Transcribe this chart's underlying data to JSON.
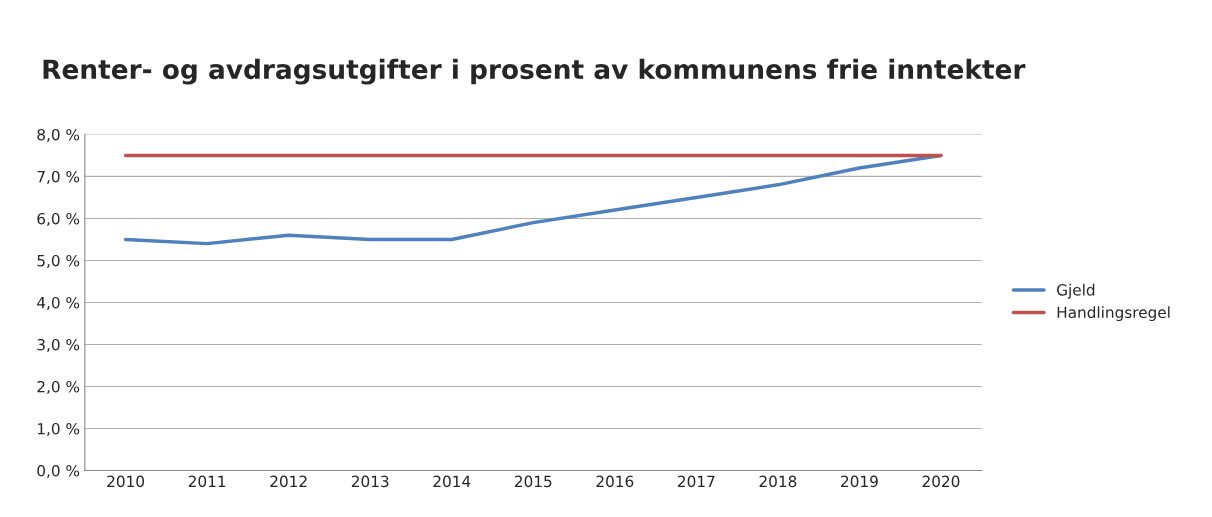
{
  "chart_data": {
    "type": "line",
    "title": "Renter- og avdragsutgifter i prosent av kommunens frie inntekter",
    "categories": [
      "2010",
      "2011",
      "2012",
      "2013",
      "2014",
      "2015",
      "2016",
      "2017",
      "2018",
      "2019",
      "2020"
    ],
    "series": [
      {
        "name": "Gjeld",
        "color": "#4f81bd",
        "values": [
          5.5,
          5.4,
          5.6,
          5.5,
          5.5,
          5.9,
          6.2,
          6.5,
          6.8,
          7.2,
          7.5
        ]
      },
      {
        "name": "Handlingsregel",
        "color": "#c0504d",
        "values": [
          7.5,
          7.5,
          7.5,
          7.5,
          7.5,
          7.5,
          7.5,
          7.5,
          7.5,
          7.5,
          7.5
        ]
      }
    ],
    "ylim": [
      0,
      8
    ],
    "yticks": [
      {
        "value": 0,
        "label": "0,0 %"
      },
      {
        "value": 1,
        "label": "1,0 %"
      },
      {
        "value": 2,
        "label": "2,0 %"
      },
      {
        "value": 3,
        "label": "3,0 %"
      },
      {
        "value": 4,
        "label": "4,0 %"
      },
      {
        "value": 5,
        "label": "5,0 %"
      },
      {
        "value": 6,
        "label": "6,0 %"
      },
      {
        "value": 7,
        "label": "7,0 %"
      },
      {
        "value": 8,
        "label": "8,0 %"
      }
    ],
    "grid": "y",
    "legend": "right",
    "marker": "none",
    "line_style": "solid"
  }
}
